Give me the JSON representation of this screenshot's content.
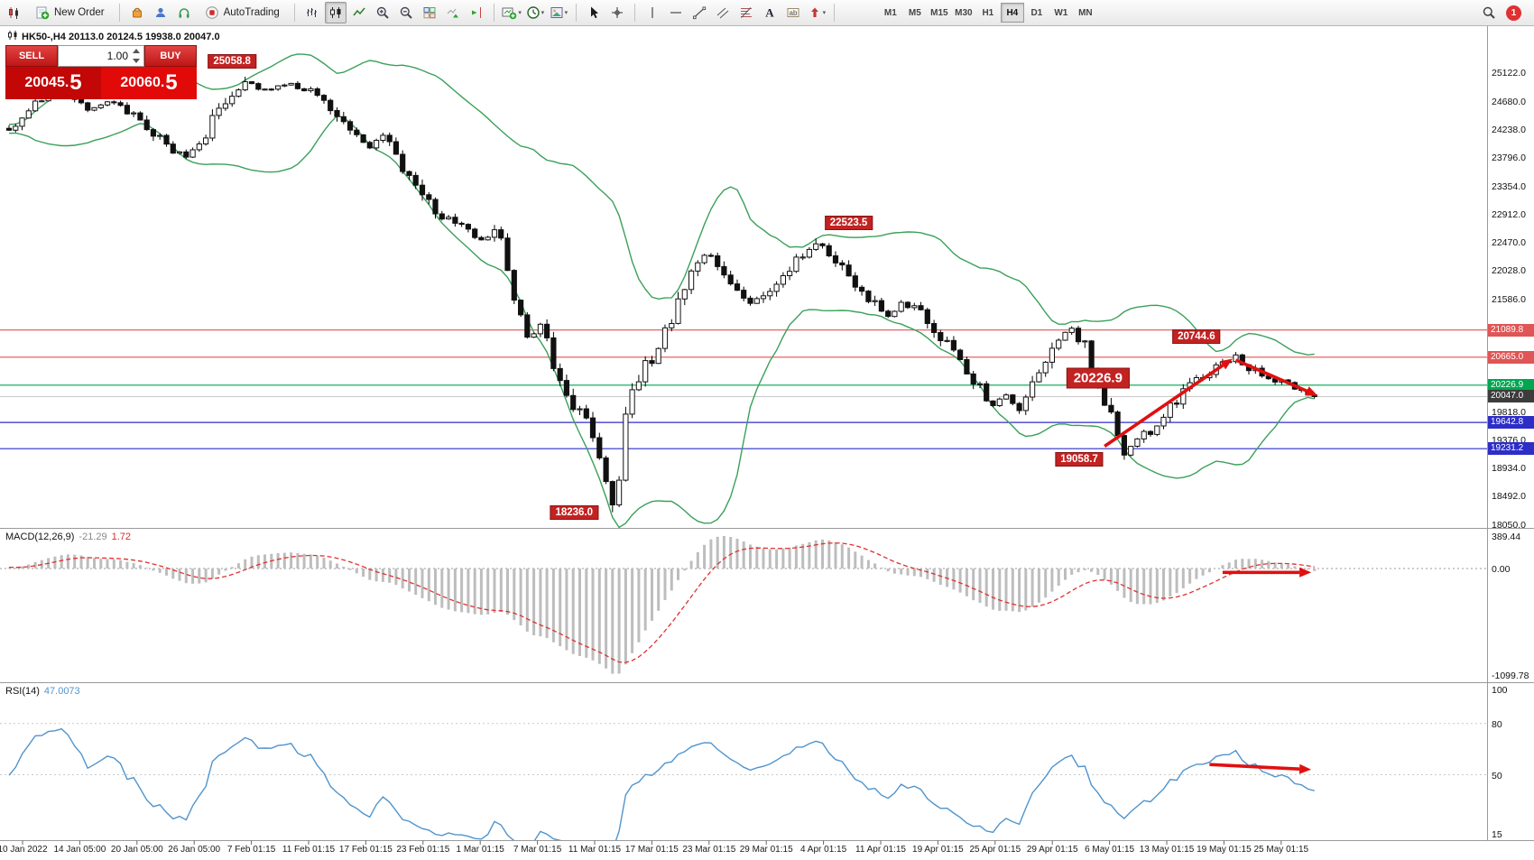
{
  "toolbar": {
    "new_order_label": "New Order",
    "autotrading_label": "AutoTrading",
    "timeframes": [
      {
        "label": "M1",
        "active": false
      },
      {
        "label": "M5",
        "active": false
      },
      {
        "label": "M15",
        "active": false
      },
      {
        "label": "M30",
        "active": false
      },
      {
        "label": "H1",
        "active": false
      },
      {
        "label": "H4",
        "active": true
      },
      {
        "label": "D1",
        "active": false
      },
      {
        "label": "W1",
        "active": false
      },
      {
        "label": "MN",
        "active": false
      }
    ],
    "notification_count": "1"
  },
  "chart": {
    "symbol_line": "HK50-,H4  20113.0 20124.5 19938.0 20047.0",
    "trade_panel": {
      "sell_label": "SELL",
      "buy_label": "BUY",
      "volume": "1.00",
      "sell_price_main": "20045.",
      "sell_price_big": "5",
      "buy_price_main": "20060.",
      "buy_price_big": "5"
    }
  },
  "macd_panel": {
    "label": "MACD(12,26,9)",
    "value_main": "-21.29",
    "value_signal": "1.72"
  },
  "rsi_panel": {
    "label": "RSI(14)",
    "value": "47.0073"
  },
  "chart_data": {
    "type": "candlestick",
    "symbol": "HK50-",
    "timeframe": "H4",
    "current_bar": {
      "open": 20113.0,
      "high": 20124.5,
      "low": 19938.0,
      "close": 20047.0
    },
    "bid": 20045.5,
    "ask": 20060.5,
    "n_candles": 200,
    "y_axis": {
      "price_min": 17990,
      "price_max": 25850,
      "ticks": [
        "25122.0",
        "24680.0",
        "24238.0",
        "23796.0",
        "23354.0",
        "22912.0",
        "22470.0",
        "22028.0",
        "21586.0",
        "21144.0",
        "20702.0",
        "20260.0",
        "19818.0",
        "19376.0",
        "18934.0",
        "18492.0",
        "18050.0"
      ]
    },
    "x_labels": [
      "10 Jan 2022",
      "14 Jan 05:00",
      "20 Jan 05:00",
      "26 Jan 05:00",
      "7 Feb 01:15",
      "11 Feb 01:15",
      "17 Feb 01:15",
      "23 Feb 01:15",
      "1 Mar 01:15",
      "7 Mar 01:15",
      "11 Mar 01:15",
      "17 Mar 01:15",
      "23 Mar 01:15",
      "29 Mar 01:15",
      "4 Apr 01:15",
      "11 Apr 01:15",
      "19 Apr 01:15",
      "25 Apr 01:15",
      "29 Apr 01:15",
      "6 May 01:15",
      "13 May 01:15",
      "19 May 01:15",
      "25 May 01:15"
    ],
    "price_path": [
      [
        0,
        24250
      ],
      [
        4,
        24620
      ],
      [
        8,
        24820
      ],
      [
        12,
        24560
      ],
      [
        16,
        24680
      ],
      [
        20,
        24380
      ],
      [
        24,
        23980
      ],
      [
        27,
        23800
      ],
      [
        30,
        24150
      ],
      [
        33,
        24700
      ],
      [
        36,
        24980
      ],
      [
        39,
        24850
      ],
      [
        43,
        24930
      ],
      [
        47,
        24780
      ],
      [
        51,
        24400
      ],
      [
        55,
        23950
      ],
      [
        57,
        24150
      ],
      [
        61,
        23450
      ],
      [
        65,
        22950
      ],
      [
        69,
        22700
      ],
      [
        72,
        22520
      ],
      [
        75,
        22620
      ],
      [
        77,
        21500
      ],
      [
        79,
        20950
      ],
      [
        81,
        21150
      ],
      [
        83,
        20600
      ],
      [
        85,
        20150
      ],
      [
        87,
        19750
      ],
      [
        89,
        19450
      ],
      [
        91,
        18750
      ],
      [
        92,
        18400
      ],
      [
        93,
        18650
      ],
      [
        94,
        19850
      ],
      [
        95,
        20150
      ],
      [
        97,
        20500
      ],
      [
        99,
        20800
      ],
      [
        102,
        21550
      ],
      [
        104,
        21950
      ],
      [
        106,
        22300
      ],
      [
        108,
        22150
      ],
      [
        110,
        21900
      ],
      [
        113,
        21520
      ],
      [
        115,
        21650
      ],
      [
        118,
        22000
      ],
      [
        121,
        22250
      ],
      [
        123,
        22430
      ],
      [
        125,
        22300
      ],
      [
        128,
        21900
      ],
      [
        131,
        21600
      ],
      [
        134,
        21320
      ],
      [
        136,
        21500
      ],
      [
        139,
        21380
      ],
      [
        142,
        21000
      ],
      [
        144,
        20680
      ],
      [
        147,
        20280
      ],
      [
        150,
        19900
      ],
      [
        152,
        20060
      ],
      [
        154,
        19830
      ],
      [
        156,
        20250
      ],
      [
        158,
        20700
      ],
      [
        160,
        21000
      ],
      [
        162,
        21120
      ],
      [
        164,
        20820
      ],
      [
        166,
        20300
      ],
      [
        168,
        19700
      ],
      [
        170,
        19150
      ],
      [
        172,
        19400
      ],
      [
        174,
        19520
      ],
      [
        176,
        19780
      ],
      [
        178,
        20000
      ],
      [
        180,
        20220
      ],
      [
        182,
        20380
      ],
      [
        184,
        20500
      ],
      [
        186,
        20620
      ],
      [
        187,
        20700
      ],
      [
        189,
        20480
      ],
      [
        191,
        20400
      ],
      [
        193,
        20300
      ],
      [
        195,
        20240
      ],
      [
        197,
        20150
      ],
      [
        199,
        20047
      ]
    ],
    "key_points": [
      {
        "index": 36,
        "type": "high",
        "price": 25058.8
      },
      {
        "index": 123,
        "type": "high",
        "price": 22523.5
      },
      {
        "index": 187,
        "type": "high",
        "price": 20744.6
      },
      {
        "index": 92,
        "type": "low",
        "price": 18236.0
      },
      {
        "index": 170,
        "type": "low",
        "price": 19058.7
      }
    ],
    "horizontal_levels": [
      {
        "price": 21089.8,
        "color": "#e05555",
        "role": "resistance"
      },
      {
        "price": 20665.0,
        "color": "#e05555",
        "role": "resistance"
      },
      {
        "price": 20226.9,
        "color": "#00a650",
        "role": "pivot"
      },
      {
        "price": 19642.8,
        "color": "#2d2dc8",
        "role": "support"
      },
      {
        "price": 19231.2,
        "color": "#2d2dc8",
        "role": "support"
      }
    ],
    "current_price": {
      "value": 20047.0,
      "line_color": "#c8c8c8",
      "tag_color": "#3c3c3c"
    },
    "bollinger": {
      "period": 20,
      "deviation": 2,
      "color": "#3aa05a"
    },
    "macd": {
      "fast": 12,
      "slow": 26,
      "signal": 9,
      "current": -21.29,
      "current_signal": 1.72,
      "scale_labels": [
        "389.44",
        "0.00",
        "-1099.78"
      ]
    },
    "rsi": {
      "period": 14,
      "current": 47.0073,
      "scale_labels": [
        "100",
        "80",
        "50",
        "15"
      ]
    },
    "annotations": {
      "price_labels": [
        {
          "text": "25058.8",
          "index": 34,
          "at_price": 25058.8,
          "placement": "above",
          "large": false
        },
        {
          "text": "22523.5",
          "index": 128,
          "at_price": 22523.5,
          "placement": "above",
          "large": false
        },
        {
          "text": "20744.6",
          "index": 181,
          "at_price": 20744.6,
          "placement": "above",
          "large": false
        },
        {
          "text": "20226.9",
          "index": 166,
          "at_price": 20330,
          "placement": "center",
          "large": true
        },
        {
          "text": "19058.7",
          "index": 166,
          "at_price": 19058.7,
          "placement": "left",
          "large": false
        },
        {
          "text": "18236.0",
          "index": 89,
          "at_price": 18236.0,
          "placement": "left",
          "large": false
        }
      ],
      "arrows": [
        {
          "panel": "price",
          "from": [
            167,
            19270
          ],
          "to": [
            186.5,
            20640
          ]
        },
        {
          "panel": "price",
          "from": [
            187,
            20620
          ],
          "to": [
            199.5,
            20060
          ]
        },
        {
          "panel": "macd",
          "from": [
            185,
            -40
          ],
          "to": [
            198.5,
            -40
          ]
        },
        {
          "panel": "rsi",
          "from": [
            183,
            56
          ],
          "to": [
            198.5,
            53
          ]
        }
      ]
    }
  }
}
